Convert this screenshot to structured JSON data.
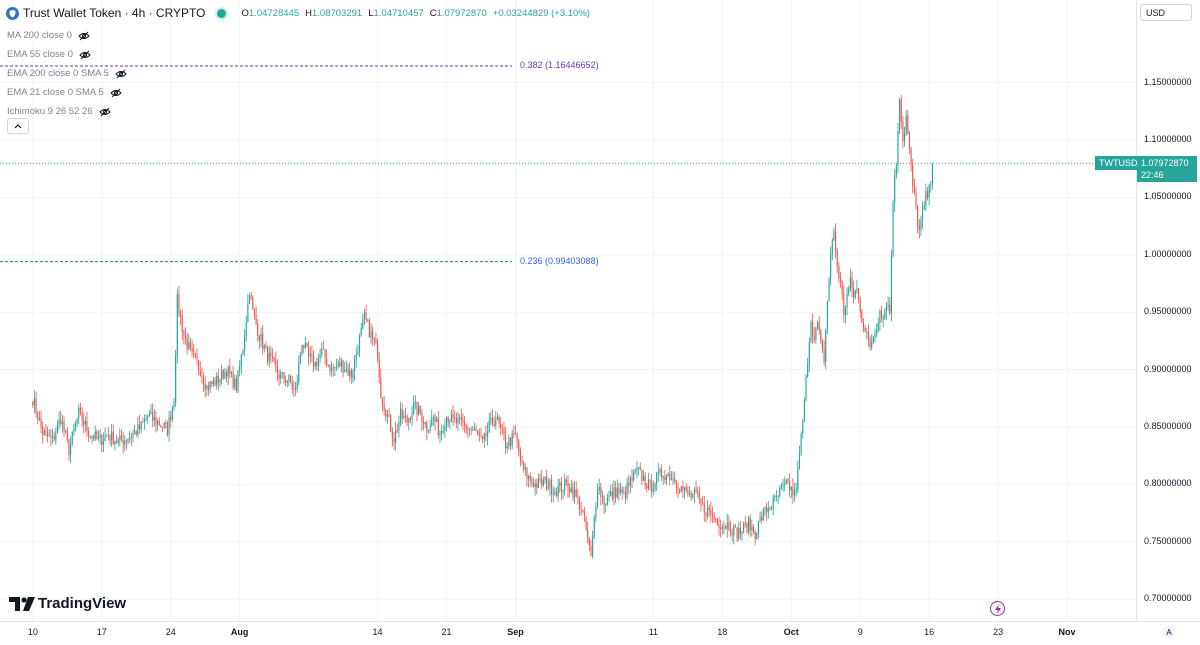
{
  "header": {
    "title": "Trust Wallet Token · 4h · CRYPTO",
    "ohlc": [
      {
        "key": "O",
        "value": "1.04728445"
      },
      {
        "key": "H",
        "value": "1.08703291"
      },
      {
        "key": "L",
        "value": "1.04710457"
      },
      {
        "key": "C",
        "value": "1.07972870"
      }
    ],
    "change": "+0.03244829 (+3.10%)"
  },
  "indicators": [
    {
      "label": "MA 200 close 0"
    },
    {
      "label": "EMA 55 close 0"
    },
    {
      "label": "EMA 200 close 0 SMA 5"
    },
    {
      "label": "EMA 21 close 0 SMA 5"
    },
    {
      "label": "Ichimoku 9 26 52 26"
    }
  ],
  "currency": "USD",
  "logo": "TradingView",
  "fib_levels": [
    {
      "label": "0.382 (1.16446652)",
      "price": 1.16446652,
      "color": "#673ab7"
    },
    {
      "label": "0.236 (0.99403088)",
      "price": 0.99403088,
      "color": "#2962ff"
    }
  ],
  "last_price": {
    "symbol": "TWTUSD",
    "price": "1.07972870",
    "countdown": "22:46",
    "value": 1.0797287
  },
  "colors": {
    "up": "#26a69a",
    "down": "#ef5350",
    "grid": "#f0f3fa"
  },
  "chart_data": {
    "type": "candlestick",
    "title": "Trust Wallet Token · 4h · CRYPTO",
    "y_ticks": [
      "1.15000000",
      "1.10000000",
      "1.05000000",
      "1.00000000",
      "0.95000000",
      "0.90000000",
      "0.85000000",
      "0.80000000",
      "0.75000000",
      "0.70000000"
    ],
    "y_tick_values": [
      1.15,
      1.1,
      1.05,
      1.0,
      0.95,
      0.9,
      0.85,
      0.8,
      0.75,
      0.7
    ],
    "ylim": [
      0.681,
      1.222
    ],
    "x_ticks": [
      "10",
      "17",
      "24",
      "Aug",
      "14",
      "21",
      "Sep",
      "11",
      "18",
      "Oct",
      "9",
      "16",
      "23",
      "Nov"
    ],
    "x_tick_bars": [
      0,
      42,
      84,
      126,
      210,
      252,
      294,
      378,
      420,
      462,
      504,
      546,
      588,
      630
    ],
    "x_bar_range": [
      -20,
      672
    ],
    "series": [
      {
        "anchors": [
          [
            0,
            0.875
          ],
          [
            6,
            0.845
          ],
          [
            12,
            0.838
          ],
          [
            17,
            0.858
          ],
          [
            22,
            0.83
          ],
          [
            28,
            0.862
          ],
          [
            34,
            0.846
          ],
          [
            40,
            0.838
          ],
          [
            46,
            0.843
          ],
          [
            52,
            0.837
          ],
          [
            57,
            0.84
          ],
          [
            62,
            0.845
          ],
          [
            66,
            0.85
          ],
          [
            70,
            0.86
          ],
          [
            78,
            0.852
          ],
          [
            82,
            0.848
          ],
          [
            86,
            0.875
          ],
          [
            88,
            0.96
          ],
          [
            92,
            0.93
          ],
          [
            96,
            0.915
          ],
          [
            102,
            0.9
          ],
          [
            106,
            0.885
          ],
          [
            112,
            0.89
          ],
          [
            118,
            0.9
          ],
          [
            124,
            0.885
          ],
          [
            128,
            0.92
          ],
          [
            132,
            0.97
          ],
          [
            134,
            0.95
          ],
          [
            138,
            0.93
          ],
          [
            142,
            0.915
          ],
          [
            146,
            0.905
          ],
          [
            150,
            0.895
          ],
          [
            156,
            0.89
          ],
          [
            160,
            0.88
          ],
          [
            164,
            0.925
          ],
          [
            168,
            0.91
          ],
          [
            172,
            0.905
          ],
          [
            176,
            0.915
          ],
          [
            182,
            0.9
          ],
          [
            188,
            0.905
          ],
          [
            194,
            0.895
          ],
          [
            198,
            0.92
          ],
          [
            202,
            0.945
          ],
          [
            206,
            0.93
          ],
          [
            210,
            0.915
          ],
          [
            212,
            0.88
          ],
          [
            216,
            0.86
          ],
          [
            220,
            0.84
          ],
          [
            224,
            0.86
          ],
          [
            228,
            0.855
          ],
          [
            232,
            0.868
          ],
          [
            236,
            0.862
          ],
          [
            240,
            0.85
          ],
          [
            244,
            0.858
          ],
          [
            248,
            0.845
          ],
          [
            252,
            0.86
          ],
          [
            256,
            0.855
          ],
          [
            262,
            0.852
          ],
          [
            266,
            0.848
          ],
          [
            270,
            0.845
          ],
          [
            274,
            0.835
          ],
          [
            278,
            0.85
          ],
          [
            282,
            0.858
          ],
          [
            288,
            0.835
          ],
          [
            294,
            0.842
          ],
          [
            298,
            0.815
          ],
          [
            302,
            0.805
          ],
          [
            306,
            0.8
          ],
          [
            312,
            0.802
          ],
          [
            318,
            0.795
          ],
          [
            322,
            0.798
          ],
          [
            326,
            0.8
          ],
          [
            330,
            0.792
          ],
          [
            334,
            0.78
          ],
          [
            337,
            0.76
          ],
          [
            340,
            0.735
          ],
          [
            342,
            0.77
          ],
          [
            344,
            0.8
          ],
          [
            348,
            0.785
          ],
          [
            352,
            0.79
          ],
          [
            356,
            0.795
          ],
          [
            360,
            0.79
          ],
          [
            364,
            0.802
          ],
          [
            368,
            0.812
          ],
          [
            372,
            0.805
          ],
          [
            376,
            0.797
          ],
          [
            380,
            0.805
          ],
          [
            384,
            0.81
          ],
          [
            388,
            0.808
          ],
          [
            392,
            0.803
          ],
          [
            396,
            0.795
          ],
          [
            400,
            0.79
          ],
          [
            404,
            0.79
          ],
          [
            408,
            0.78
          ],
          [
            412,
            0.776
          ],
          [
            416,
            0.77
          ],
          [
            420,
            0.765
          ],
          [
            424,
            0.765
          ],
          [
            428,
            0.758
          ],
          [
            432,
            0.76
          ],
          [
            436,
            0.765
          ],
          [
            440,
            0.758
          ],
          [
            444,
            0.772
          ],
          [
            448,
            0.78
          ],
          [
            452,
            0.785
          ],
          [
            456,
            0.795
          ],
          [
            460,
            0.8
          ],
          [
            464,
            0.79
          ],
          [
            466,
            0.81
          ],
          [
            468,
            0.84
          ],
          [
            470,
            0.87
          ],
          [
            472,
            0.91
          ],
          [
            474,
            0.945
          ],
          [
            476,
            0.925
          ],
          [
            478,
            0.94
          ],
          [
            480,
            0.92
          ],
          [
            482,
            0.91
          ],
          [
            484,
            0.96
          ],
          [
            486,
            1.0
          ],
          [
            488,
            1.02
          ],
          [
            490,
            0.99
          ],
          [
            492,
            0.975
          ],
          [
            494,
            0.95
          ],
          [
            496,
            0.965
          ],
          [
            498,
            0.975
          ],
          [
            500,
            0.965
          ],
          [
            502,
            0.97
          ],
          [
            504,
            0.95
          ],
          [
            506,
            0.94
          ],
          [
            508,
            0.935
          ],
          [
            510,
            0.915
          ],
          [
            512,
            0.93
          ],
          [
            514,
            0.935
          ],
          [
            516,
            0.955
          ],
          [
            518,
            0.945
          ],
          [
            520,
            0.96
          ],
          [
            522,
            0.95
          ],
          [
            524,
            1.05
          ],
          [
            526,
            1.08
          ],
          [
            528,
            1.14
          ],
          [
            530,
            1.1
          ],
          [
            532,
            1.12
          ],
          [
            534,
            1.09
          ],
          [
            536,
            1.06
          ],
          [
            538,
            1.04
          ],
          [
            540,
            1.02
          ],
          [
            542,
            1.035
          ],
          [
            544,
            1.05
          ],
          [
            546,
            1.055
          ],
          [
            548,
            1.079
          ]
        ]
      }
    ],
    "grid": true,
    "legend": "none"
  }
}
